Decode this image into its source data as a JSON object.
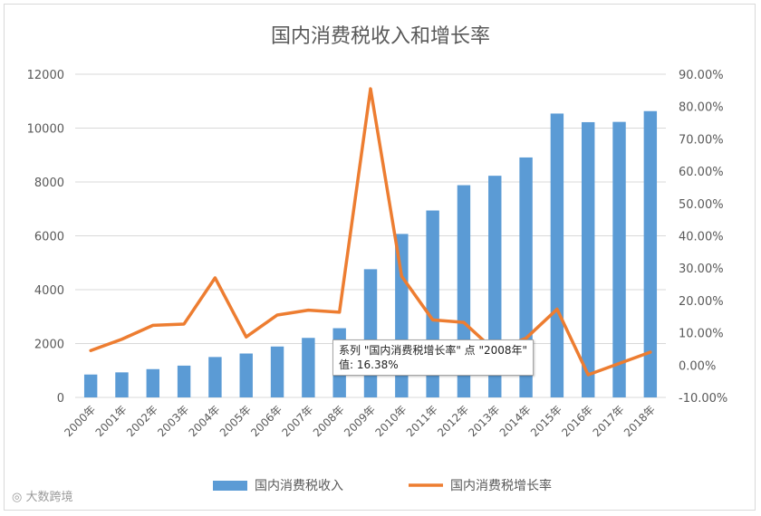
{
  "chart_data": {
    "type": "bar",
    "title": "国内消费税收入和增长率",
    "categories": [
      "2000年",
      "2001年",
      "2002年",
      "2003年",
      "2004年",
      "2005年",
      "2006年",
      "2007年",
      "2008年",
      "2009年",
      "2010年",
      "2011年",
      "2012年",
      "2013年",
      "2014年",
      "2015年",
      "2016年",
      "2017年",
      "2018年"
    ],
    "series": [
      {
        "name": "国内消费税收入",
        "type": "bar",
        "axis": "left",
        "color": "#5B9BD5",
        "values": [
          850,
          930,
          1050,
          1180,
          1500,
          1630,
          1890,
          2210,
          2570,
          4760,
          6070,
          6940,
          7880,
          8230,
          8910,
          10540,
          10220,
          10230,
          10630
        ]
      },
      {
        "name": "国内消费税增长率",
        "type": "line",
        "axis": "right",
        "color": "#ED7D31",
        "values": [
          4.5,
          8.0,
          12.3,
          12.7,
          27.0,
          8.7,
          15.5,
          17.0,
          16.38,
          85.5,
          27.5,
          14.0,
          13.2,
          4.4,
          8.3,
          17.3,
          -3.0,
          0.5,
          4.0
        ]
      }
    ],
    "y_left": {
      "min": 0,
      "max": 12000,
      "ticks": [
        "0",
        "2000",
        "4000",
        "6000",
        "8000",
        "10000",
        "12000"
      ]
    },
    "y_right": {
      "min": -10,
      "max": 90,
      "ticks": [
        "-10.00%",
        "0.00%",
        "10.00%",
        "20.00%",
        "30.00%",
        "40.00%",
        "50.00%",
        "60.00%",
        "70.00%",
        "80.00%",
        "90.00%"
      ]
    },
    "grid": true,
    "legend_position": "bottom"
  },
  "tooltip": {
    "line1": "系列 \"国内消费税增长率\" 点 \"2008年\"",
    "line2": "值: 16.38%"
  },
  "watermark": "大数跨境"
}
